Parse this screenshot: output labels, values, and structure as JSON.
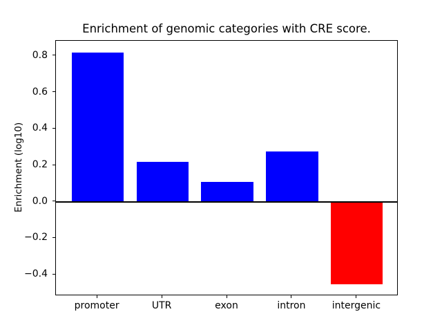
{
  "chart_data": {
    "type": "bar",
    "title": "Enrichment of genomic categories with CRE score.",
    "xlabel": "",
    "ylabel": "Enrichment (log10)",
    "categories": [
      "promoter",
      "UTR",
      "exon",
      "intron",
      "intergenic"
    ],
    "values": [
      0.82,
      0.22,
      0.11,
      0.275,
      -0.452
    ],
    "bar_colors": [
      "#0000ff",
      "#0000ff",
      "#0000ff",
      "#0000ff",
      "#ff0000"
    ],
    "bar_width": 0.8,
    "yticks": [
      0.8,
      0.6,
      0.4,
      0.2,
      0.0,
      -0.2,
      -0.4
    ],
    "ytick_labels": [
      "0.8",
      "0.6",
      "0.4",
      "0.2",
      "0.0",
      "−0.2",
      "−0.4"
    ],
    "ylim": [
      -0.517,
      0.883
    ],
    "xlim": [
      -0.64,
      4.64
    ],
    "zero_line": true,
    "grid": false,
    "legend": null,
    "colors": {
      "positive_bar": "#0000ff",
      "negative_bar": "#ff0000",
      "axis": "#000000",
      "background": "#ffffff",
      "text": "#000000"
    }
  }
}
